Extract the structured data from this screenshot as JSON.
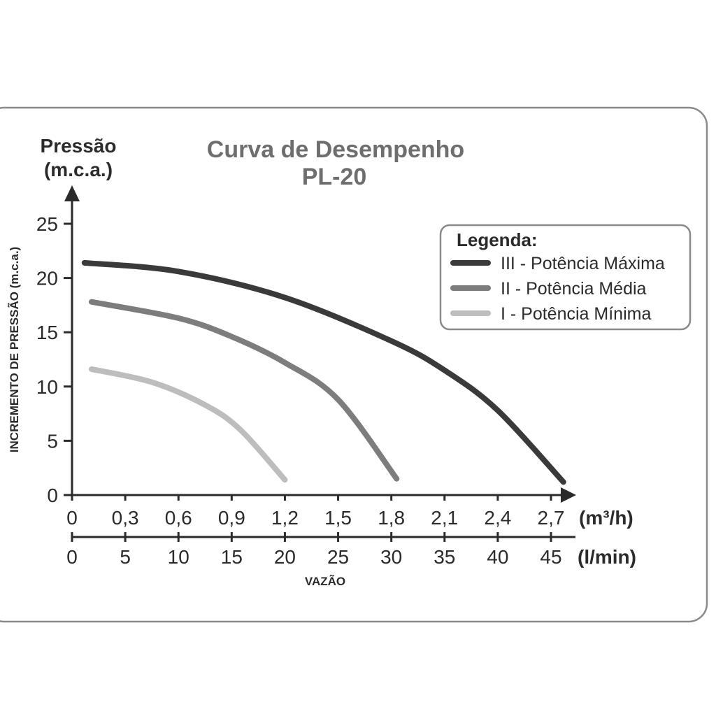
{
  "chart_data": {
    "type": "line",
    "title": "Curva de Desempenho",
    "subtitle": "PL-20",
    "ylabel_top": "Pressão",
    "ylabel_top_unit": "(m.c.a.)",
    "ylabel": "INCREMENTO DE PRESSÃO (m.c.a.)",
    "xlabel": "VAZÃO",
    "x_unit": "(m³/h)",
    "x2_unit": "(l/min)",
    "ylim": [
      0,
      25
    ],
    "xlim": [
      0,
      2.7
    ],
    "y_ticks": [
      "0",
      "5",
      "10",
      "15",
      "20",
      "25"
    ],
    "x_ticks": [
      "0",
      "0,3",
      "0,6",
      "0,9",
      "1,2",
      "1,5",
      "1,8",
      "2,1",
      "2,4",
      "2,7"
    ],
    "x2_ticks": [
      "0",
      "5",
      "10",
      "15",
      "20",
      "25",
      "30",
      "35",
      "40",
      "45"
    ],
    "grid": false,
    "legend": {
      "title": "Legenda:",
      "position": "top-right"
    },
    "series": [
      {
        "name": "III - Potência Máxima",
        "color": "#3a3a3a",
        "x": [
          0.07,
          0.6,
          1.2,
          1.8,
          2.1,
          2.4,
          2.77
        ],
        "y": [
          21.4,
          20.6,
          18.2,
          14.2,
          11.5,
          7.8,
          1.2
        ]
      },
      {
        "name": "II - Potência Média",
        "color": "#7d7d7d",
        "x": [
          0.11,
          0.6,
          0.9,
          1.2,
          1.5,
          1.83
        ],
        "y": [
          17.8,
          16.3,
          14.6,
          12.2,
          8.8,
          1.5
        ]
      },
      {
        "name": "I - Potência Mínima",
        "color": "#bdbdbd",
        "x": [
          0.11,
          0.45,
          0.75,
          0.95,
          1.2
        ],
        "y": [
          11.6,
          10.4,
          8.3,
          6.0,
          1.4
        ]
      }
    ]
  }
}
